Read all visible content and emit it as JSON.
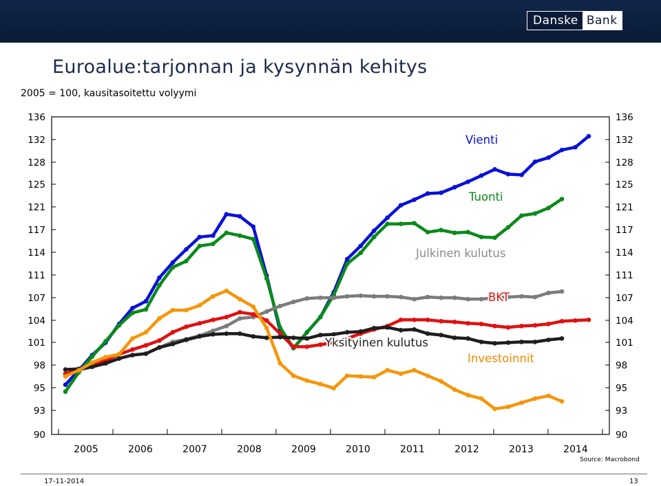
{
  "header": {
    "brand_part1": "Danske",
    "brand_part2": "Bank"
  },
  "title": "Euroalue:tarjonnan ja kysynnän kehitys",
  "subtitle": "2005 = 100, kausitasoitettu volyymi",
  "source": "Source: Macrobond",
  "footer": {
    "date": "17-11-2014",
    "page": "13"
  },
  "chart_data": {
    "type": "line",
    "ylim": [
      90,
      136
    ],
    "yticks": [
      "136",
      "132",
      "128",
      "125",
      "121",
      "117",
      "114",
      "111",
      "107",
      "104",
      "101",
      "98",
      "95",
      "93",
      "90"
    ],
    "xticks": [
      "2005",
      "2006",
      "2007",
      "2008",
      "2009",
      "2010",
      "2011",
      "2012",
      "2013",
      "2014"
    ],
    "grid": false,
    "series": [
      {
        "name": "Vienti",
        "color": "#0a10d8",
        "values": [
          97.2,
          99.3,
          101.5,
          103.3,
          106.0,
          108.3,
          109.3,
          112.7,
          114.9,
          116.8,
          118.6,
          118.8,
          121.9,
          121.6,
          120.1,
          113.0,
          105.0,
          102.5,
          104.8,
          107.0,
          110.6,
          115.4,
          117.3,
          119.5,
          121.4,
          123.2,
          124.0,
          124.9,
          125.0,
          125.8,
          126.6,
          127.5,
          128.4,
          127.7,
          127.6,
          129.5,
          130.1,
          131.2,
          131.6,
          133.2
        ]
      },
      {
        "name": "Tuonti",
        "color": "#0a8a1a",
        "values": [
          96.2,
          99.0,
          101.3,
          103.5,
          105.8,
          107.6,
          108.1,
          111.6,
          114.2,
          115.1,
          117.3,
          117.6,
          119.2,
          118.8,
          118.3,
          112.6,
          105.5,
          102.5,
          104.8,
          107.0,
          110.2,
          114.7,
          116.3,
          118.6,
          120.5,
          120.5,
          120.6,
          119.3,
          119.6,
          119.2,
          119.3,
          118.6,
          118.5,
          120.0,
          121.7,
          122.0,
          122.8,
          124.1
        ]
      },
      {
        "name": "Julkinen kulutus",
        "color": "#7c7c7c",
        "values": [
          98.5,
          99.3,
          99.8,
          100.3,
          101.0,
          101.5,
          101.7,
          102.6,
          103.4,
          103.8,
          104.3,
          105.0,
          105.7,
          106.8,
          107.0,
          107.8,
          108.6,
          109.2,
          109.7,
          109.8,
          109.8,
          110.0,
          110.1,
          110.0,
          110.0,
          109.9,
          109.6,
          109.9,
          109.8,
          109.8,
          109.6,
          109.6,
          109.8,
          109.9,
          110.0,
          109.9,
          110.5,
          110.7
        ]
      },
      {
        "name": "BKT",
        "color": "#e01010",
        "values": [
          98.8,
          99.4,
          100.2,
          100.7,
          101.6,
          102.3,
          102.9,
          103.6,
          104.8,
          105.6,
          106.1,
          106.6,
          107.0,
          107.7,
          107.4,
          106.5,
          104.6,
          102.7,
          102.7,
          103.0,
          103.3,
          103.9,
          104.6,
          105.2,
          105.7,
          106.6,
          106.6,
          106.6,
          106.4,
          106.3,
          106.1,
          106.0,
          105.7,
          105.5,
          105.7,
          105.8,
          106.0,
          106.4,
          106.5,
          106.6
        ]
      },
      {
        "name": "Yksityinen kulutus",
        "color": "#1e1e1e",
        "values": [
          99.4,
          99.5,
          99.8,
          100.3,
          101.0,
          101.5,
          101.7,
          102.6,
          103.1,
          103.7,
          104.2,
          104.5,
          104.6,
          104.6,
          104.2,
          104.0,
          104.1,
          104.0,
          103.9,
          104.4,
          104.5,
          104.8,
          104.9,
          105.4,
          105.5,
          105.1,
          105.2,
          104.6,
          104.4,
          104.0,
          103.9,
          103.4,
          103.2,
          103.3,
          103.4,
          103.4,
          103.7,
          103.9
        ]
      },
      {
        "name": "Investoinnit",
        "color": "#f5960a",
        "values": [
          98.4,
          99.3,
          100.4,
          101.2,
          101.6,
          103.9,
          104.8,
          106.8,
          108.0,
          108.0,
          108.7,
          110.0,
          110.8,
          109.6,
          108.5,
          105.4,
          100.3,
          98.5,
          97.8,
          97.3,
          96.7,
          98.5,
          98.4,
          98.3,
          99.3,
          98.8,
          99.3,
          98.5,
          97.7,
          96.5,
          95.7,
          95.2,
          93.7,
          94.0,
          94.6,
          95.2,
          95.6,
          94.8
        ]
      }
    ],
    "annotations": [
      "Vienti",
      "Tuonti",
      "Julkinen kulutus",
      "BKT",
      "Yksityinen kulutus",
      "Investoinnit"
    ]
  }
}
